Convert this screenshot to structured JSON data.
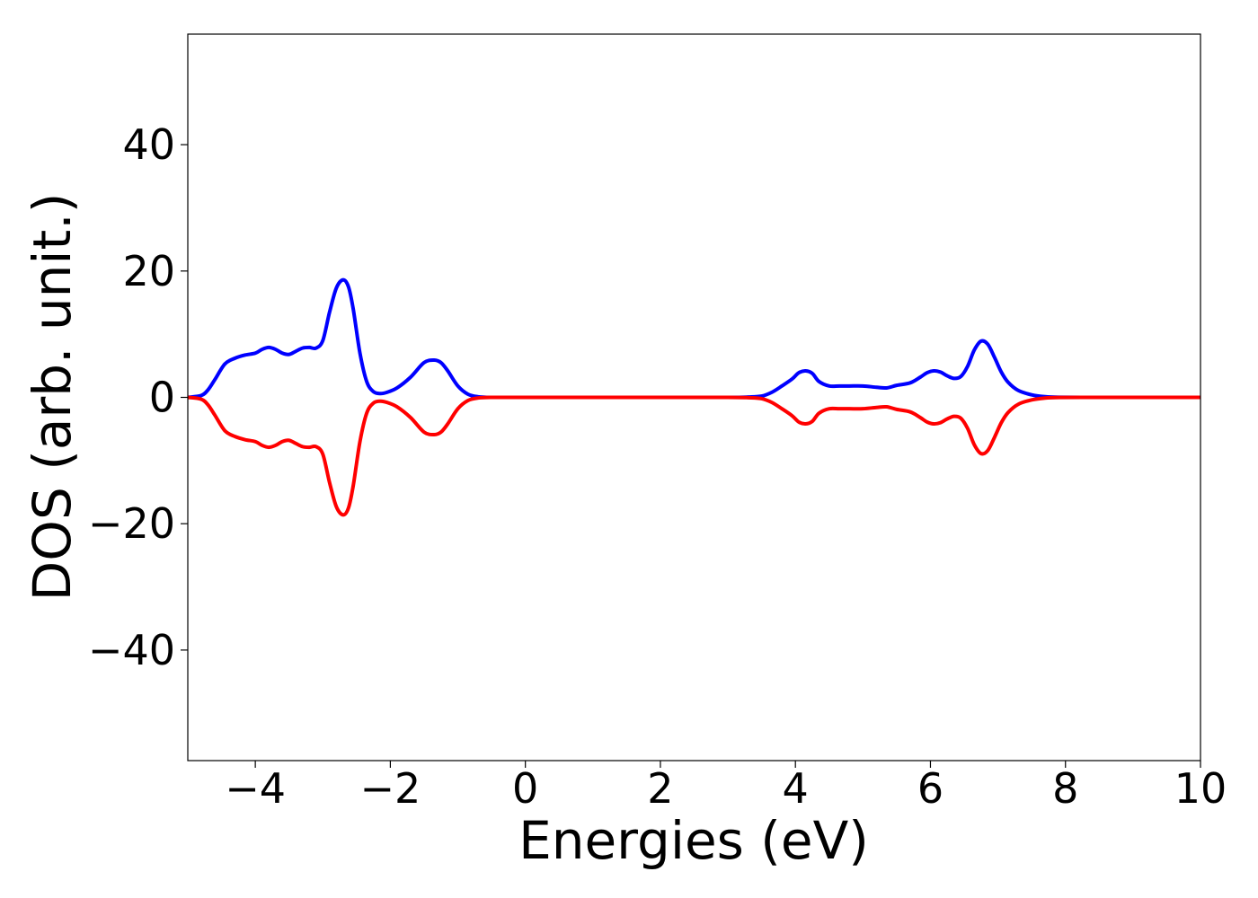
{
  "chart_data": {
    "type": "line",
    "xlabel": "Energies (eV)",
    "ylabel": "DOS (arb. unit.)",
    "xlim": [
      -5,
      10
    ],
    "ylim": [
      -57.5,
      57.5
    ],
    "xticks": [
      {
        "value": -4,
        "label": "−4"
      },
      {
        "value": -2,
        "label": "−2"
      },
      {
        "value": 0,
        "label": "0"
      },
      {
        "value": 2,
        "label": "2"
      },
      {
        "value": 4,
        "label": "4"
      },
      {
        "value": 6,
        "label": "6"
      },
      {
        "value": 8,
        "label": "8"
      },
      {
        "value": 10,
        "label": "10"
      }
    ],
    "yticks": [
      {
        "value": 40,
        "label": "40"
      },
      {
        "value": 20,
        "label": "20"
      },
      {
        "value": 0,
        "label": "0"
      },
      {
        "value": -20,
        "label": "−20"
      },
      {
        "value": -40,
        "label": "−40"
      }
    ],
    "grid": false,
    "legend": "none",
    "series": [
      {
        "color": "#0000ff",
        "x": [
          -5.0,
          -4.8,
          -4.7,
          -4.6,
          -4.45,
          -4.3,
          -4.15,
          -4.0,
          -3.9,
          -3.8,
          -3.7,
          -3.6,
          -3.5,
          -3.4,
          -3.3,
          -3.2,
          -3.1,
          -3.0,
          -2.9,
          -2.8,
          -2.7,
          -2.62,
          -2.55,
          -2.45,
          -2.35,
          -2.25,
          -2.15,
          -2.05,
          -1.9,
          -1.7,
          -1.5,
          -1.35,
          -1.25,
          -1.15,
          -1.0,
          -0.85,
          -0.7,
          -0.5,
          0.0,
          1.0,
          2.0,
          3.0,
          3.3,
          3.5,
          3.65,
          3.8,
          3.95,
          4.05,
          4.15,
          4.25,
          4.35,
          4.5,
          4.65,
          4.8,
          5.0,
          5.2,
          5.35,
          5.5,
          5.7,
          5.85,
          5.95,
          6.05,
          6.15,
          6.25,
          6.35,
          6.45,
          6.55,
          6.65,
          6.75,
          6.85,
          6.95,
          7.05,
          7.15,
          7.3,
          7.5,
          7.7,
          7.9,
          8.5,
          9.0,
          10.0
        ],
        "y": [
          0.0,
          0.3,
          1.2,
          2.8,
          5.3,
          6.2,
          6.7,
          7.0,
          7.6,
          7.9,
          7.6,
          7.0,
          6.8,
          7.3,
          7.8,
          7.9,
          7.8,
          9.0,
          13.5,
          17.3,
          18.6,
          17.5,
          14.0,
          7.0,
          2.5,
          0.9,
          0.6,
          0.8,
          1.5,
          3.2,
          5.5,
          5.9,
          5.5,
          4.2,
          1.8,
          0.5,
          0.1,
          0.0,
          0.0,
          0.0,
          0.0,
          0.0,
          0.05,
          0.2,
          0.8,
          1.8,
          2.9,
          3.9,
          4.2,
          3.8,
          2.5,
          1.8,
          1.8,
          1.8,
          1.8,
          1.6,
          1.5,
          1.9,
          2.3,
          3.2,
          3.9,
          4.2,
          4.0,
          3.4,
          3.0,
          3.3,
          4.9,
          7.5,
          8.9,
          8.4,
          6.3,
          4.0,
          2.4,
          1.1,
          0.4,
          0.1,
          0.02,
          0.0,
          0.0,
          0.0
        ]
      },
      {
        "color": "#ff0000",
        "x": [
          -5.0,
          -4.8,
          -4.7,
          -4.6,
          -4.45,
          -4.3,
          -4.15,
          -4.0,
          -3.9,
          -3.8,
          -3.7,
          -3.6,
          -3.5,
          -3.4,
          -3.3,
          -3.2,
          -3.1,
          -3.0,
          -2.9,
          -2.8,
          -2.7,
          -2.62,
          -2.55,
          -2.45,
          -2.35,
          -2.25,
          -2.15,
          -2.05,
          -1.9,
          -1.7,
          -1.5,
          -1.35,
          -1.25,
          -1.15,
          -1.0,
          -0.85,
          -0.7,
          -0.5,
          0.0,
          1.0,
          2.0,
          3.0,
          3.3,
          3.5,
          3.65,
          3.8,
          3.95,
          4.05,
          4.15,
          4.25,
          4.35,
          4.5,
          4.65,
          4.8,
          5.0,
          5.2,
          5.35,
          5.5,
          5.7,
          5.85,
          5.95,
          6.05,
          6.15,
          6.25,
          6.35,
          6.45,
          6.55,
          6.65,
          6.75,
          6.85,
          6.95,
          7.05,
          7.15,
          7.3,
          7.5,
          7.7,
          7.9,
          8.5,
          9.0,
          10.0
        ],
        "y": [
          0.0,
          -0.3,
          -1.2,
          -2.8,
          -5.3,
          -6.2,
          -6.7,
          -7.0,
          -7.6,
          -7.9,
          -7.6,
          -7.0,
          -6.8,
          -7.3,
          -7.8,
          -7.9,
          -7.8,
          -9.0,
          -13.5,
          -17.3,
          -18.6,
          -17.5,
          -14.0,
          -7.0,
          -2.5,
          -0.9,
          -0.6,
          -0.8,
          -1.5,
          -3.2,
          -5.5,
          -5.9,
          -5.5,
          -4.2,
          -1.8,
          -0.5,
          -0.1,
          0.0,
          0.0,
          0.0,
          0.0,
          0.0,
          -0.05,
          -0.2,
          -0.8,
          -1.8,
          -2.9,
          -3.9,
          -4.2,
          -3.8,
          -2.5,
          -1.8,
          -1.8,
          -1.8,
          -1.8,
          -1.6,
          -1.5,
          -1.9,
          -2.3,
          -3.2,
          -3.9,
          -4.2,
          -4.0,
          -3.4,
          -3.0,
          -3.3,
          -4.9,
          -7.5,
          -8.9,
          -8.4,
          -6.3,
          -4.0,
          -2.4,
          -1.1,
          -0.4,
          -0.1,
          -0.02,
          0.0,
          0.0,
          0.0
        ]
      }
    ]
  }
}
